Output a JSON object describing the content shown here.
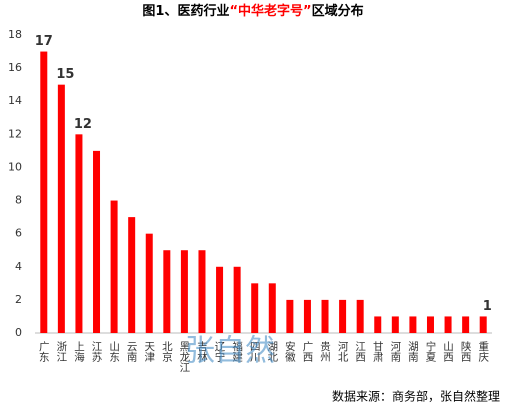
{
  "chart_data": {
    "type": "bar",
    "title": [
      "图1、医药行业",
      "“中华老字号”",
      "区域分布"
    ],
    "title_colors": [
      "#000000",
      "#ff0000",
      "#000000"
    ],
    "categories": [
      "广东",
      "浙江",
      "上海",
      "江苏",
      "山东",
      "云南",
      "天津",
      "北京",
      "黑龙江",
      "吉林",
      "辽宁",
      "福建",
      "四川",
      "湖北",
      "安徽",
      "广西",
      "贵州",
      "河北",
      "江西",
      "甘肃",
      "河南",
      "湖南",
      "宁夏",
      "山西",
      "陕西",
      "重庆"
    ],
    "values": [
      17,
      15,
      12,
      11,
      8,
      7,
      6,
      5,
      5,
      5,
      4,
      4,
      3,
      3,
      2,
      2,
      2,
      2,
      2,
      1,
      1,
      1,
      1,
      1,
      1,
      1
    ],
    "value_labels": [
      "17",
      "15",
      "12",
      null,
      null,
      null,
      null,
      null,
      null,
      null,
      null,
      null,
      null,
      null,
      null,
      null,
      null,
      null,
      null,
      null,
      null,
      null,
      null,
      null,
      null,
      "1"
    ],
    "color": "#ff0000",
    "ylim": [
      0,
      18
    ],
    "yticks": [
      0,
      2,
      4,
      6,
      8,
      10,
      12,
      14,
      16,
      18
    ],
    "grid": false,
    "watermark": "张自然",
    "source": "数据来源：商务部，张自然整理"
  }
}
